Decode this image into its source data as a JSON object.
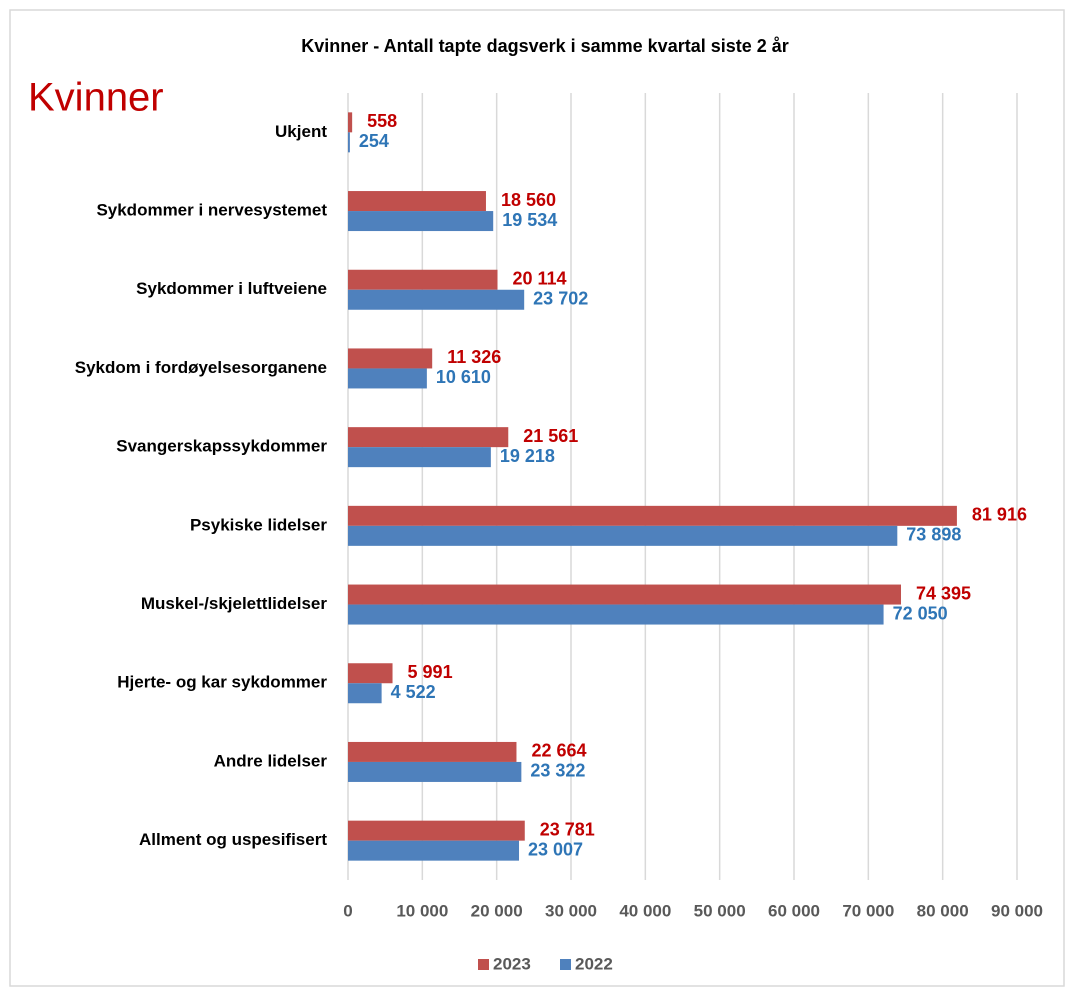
{
  "chart_data": {
    "type": "bar",
    "orientation": "horizontal",
    "title": "Kvinner - Antall tapte dagsverk i samme kvartal siste 2 år",
    "annotation": "Kvinner",
    "categories": [
      "Ukjent",
      "Sykdommer i nervesystemet",
      "Sykdommer i luftveiene",
      "Sykdom i fordøyelsesorganene",
      "Svangerskapssykdommer",
      "Psykiske lidelser",
      "Muskel-/skjelettlidelser",
      "Hjerte- og kar sykdommer",
      "Andre lidelser",
      "Allment og uspesifisert"
    ],
    "series": [
      {
        "name": "2023",
        "color": "#c0504d",
        "values": [
          558,
          18560,
          20114,
          11326,
          21561,
          81916,
          74395,
          5991,
          22664,
          23781
        ],
        "value_labels": [
          "558",
          "18 560",
          "20 114",
          "11 326",
          "21 561",
          "81 916",
          "74 395",
          "5 991",
          "22 664",
          "23 781"
        ]
      },
      {
        "name": "2022",
        "color": "#4f81bd",
        "values": [
          254,
          19534,
          23702,
          10610,
          19218,
          73898,
          72050,
          4522,
          23322,
          23007
        ],
        "value_labels": [
          "254",
          "19 534",
          "23 702",
          "10 610",
          "19 218",
          "73 898",
          "72 050",
          "4 522",
          "23 322",
          "23 007"
        ]
      }
    ],
    "xlim": [
      0,
      90000
    ],
    "xticks": [
      0,
      {
        "value": 10000,
        "label": "10 000"
      },
      {
        "value": 20000,
        "label": "20 000"
      },
      {
        "value": 30000,
        "label": "30 000"
      },
      {
        "value": 40000,
        "label": "40 000"
      },
      {
        "value": 50000,
        "label": "50 000"
      },
      {
        "value": 60000,
        "label": "60 000"
      },
      {
        "value": 70000,
        "label": "70 000"
      },
      {
        "value": 80000,
        "label": "80 000"
      },
      {
        "value": 90000,
        "label": "90 000"
      }
    ],
    "grid": true,
    "legend": "bottom"
  }
}
